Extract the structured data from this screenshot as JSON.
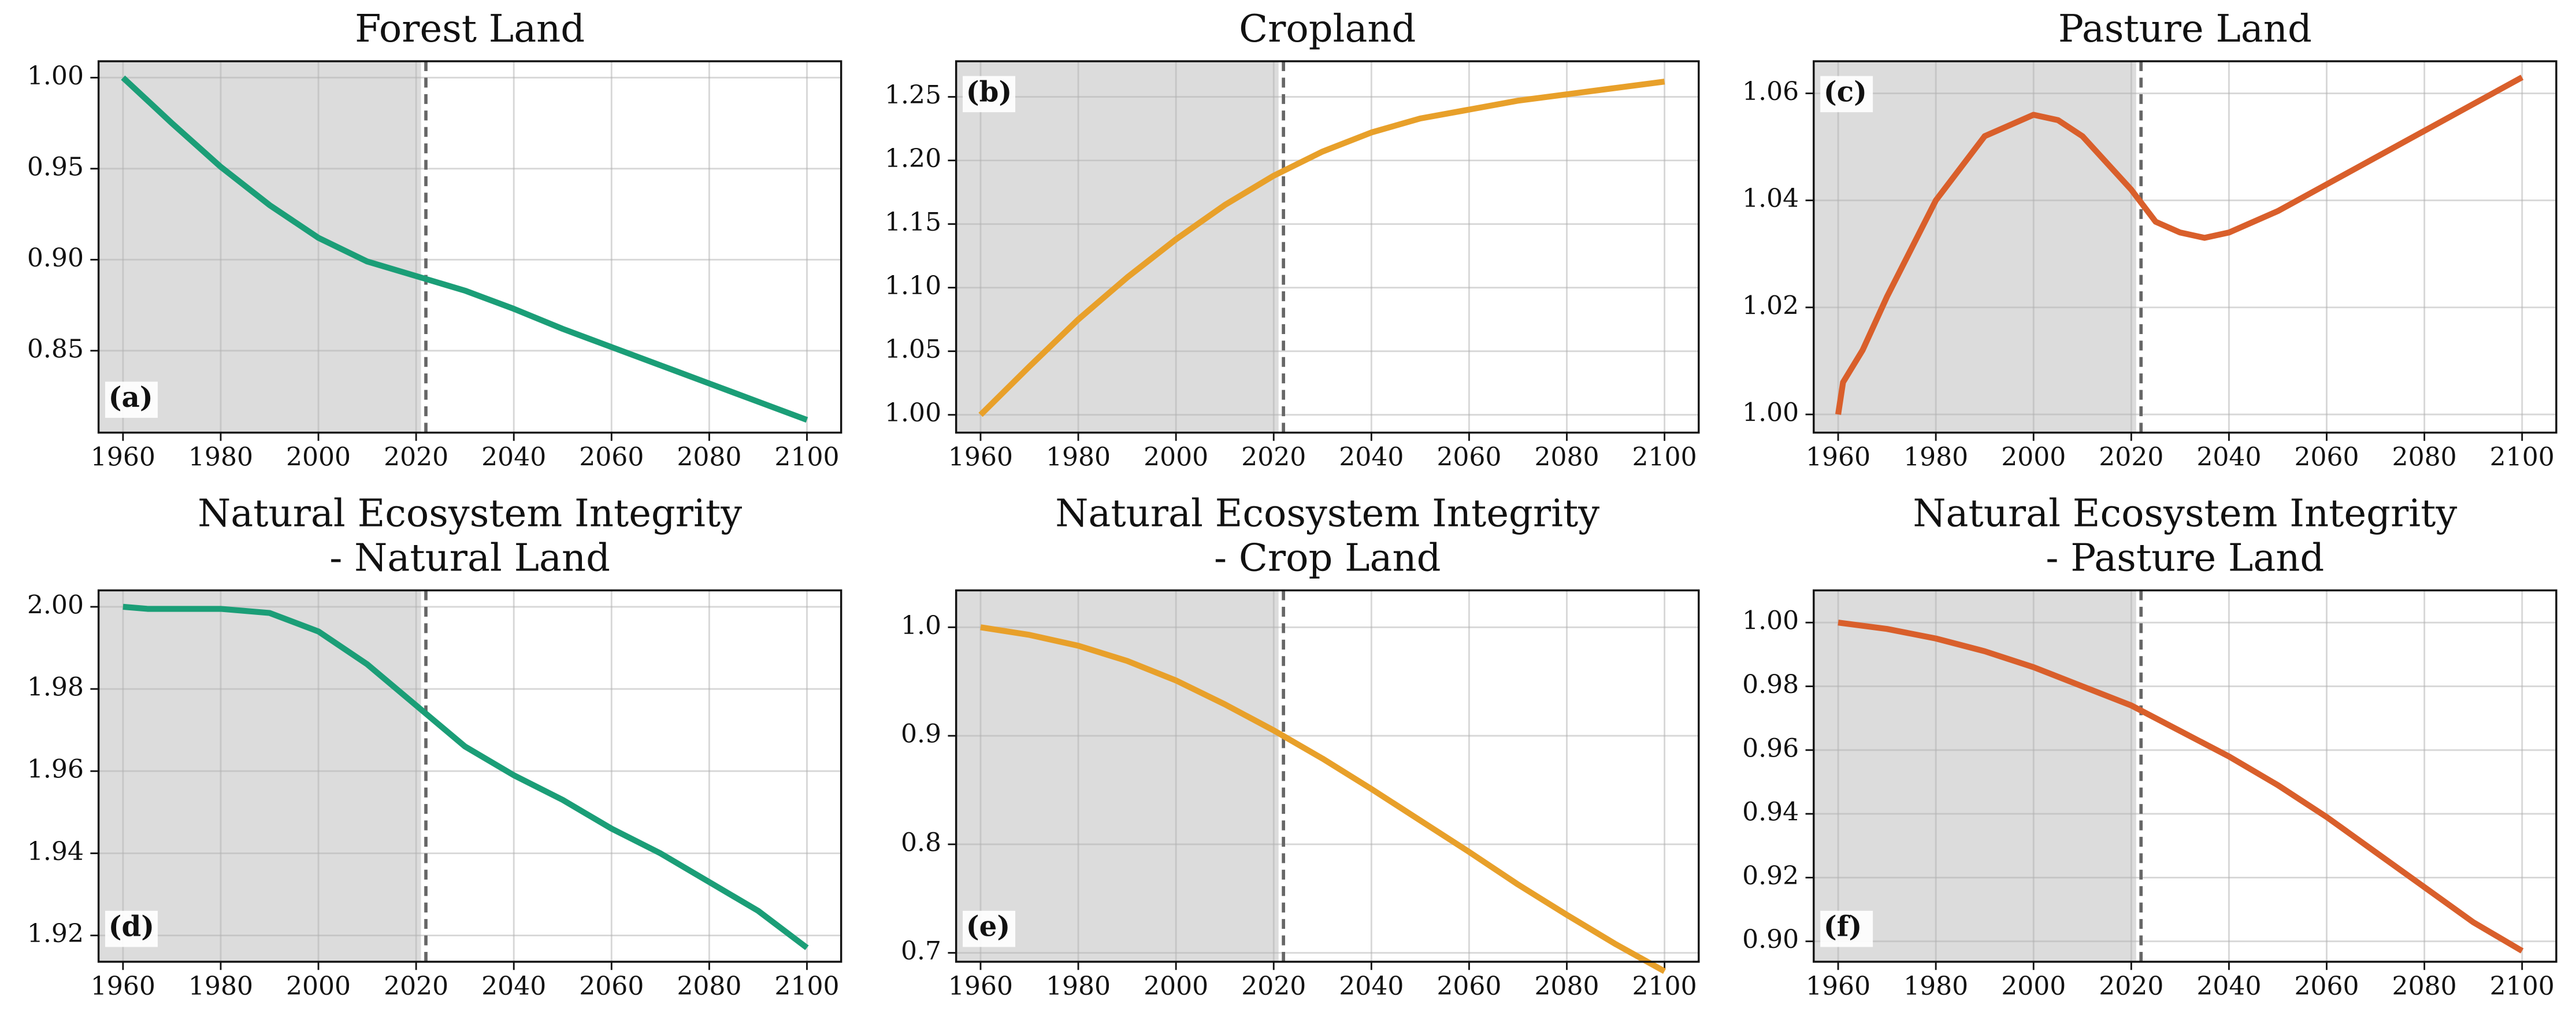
{
  "chart_data": [
    {
      "type": "line",
      "title": [
        "Forest Land"
      ],
      "panel_label": "(a)",
      "label_loc": "lower left",
      "x": [
        1960,
        1962,
        1970,
        1980,
        1990,
        2000,
        2010,
        2020,
        2030,
        2040,
        2050,
        2060,
        2070,
        2080,
        2090,
        2100
      ],
      "series": [
        {
          "color": "#1b9e77",
          "values": [
            1.0,
            0.995,
            0.975,
            0.951,
            0.93,
            0.912,
            0.899,
            0.891,
            0.883,
            0.873,
            0.862,
            0.852,
            0.842,
            0.832,
            0.822,
            0.812
          ]
        }
      ],
      "xlim": [
        1955,
        2107
      ],
      "xticks": [
        1960,
        1980,
        2000,
        2020,
        2040,
        2060,
        2080,
        2100
      ],
      "ylim": [
        0.805,
        1.009
      ],
      "yticks": [
        {
          "value": 1.0,
          "label": "1.00"
        },
        0.95,
        {
          "value": 0.9,
          "label": "0.90"
        },
        0.85
      ],
      "shade_until": 2021,
      "vline": 2022,
      "grid": true
    },
    {
      "type": "line",
      "title": [
        "Cropland"
      ],
      "panel_label": "(b)",
      "label_loc": "upper left",
      "x": [
        1960,
        1970,
        1980,
        1990,
        2000,
        2010,
        2020,
        2030,
        2040,
        2050,
        2060,
        2070,
        2080,
        2090,
        2100
      ],
      "series": [
        {
          "color": "#e8a02a",
          "values": [
            1.0,
            1.038,
            1.075,
            1.108,
            1.138,
            1.165,
            1.188,
            1.207,
            1.222,
            1.233,
            1.24,
            1.247,
            1.252,
            1.257,
            1.262
          ]
        }
      ],
      "xlim": [
        1955,
        2107
      ],
      "xticks": [
        1960,
        1980,
        2000,
        2020,
        2040,
        2060,
        2080,
        2100
      ],
      "ylim": [
        0.986,
        1.278
      ],
      "yticks": [
        {
          "value": 1.0,
          "label": "1.00"
        },
        1.05,
        {
          "value": 1.1,
          "label": "1.10"
        },
        1.15,
        {
          "value": 1.2,
          "label": "1.20"
        },
        1.25
      ],
      "shade_until": 2021,
      "vline": 2022,
      "grid": true
    },
    {
      "type": "line",
      "title": [
        "Pasture Land"
      ],
      "panel_label": "(c)",
      "label_loc": "upper left",
      "x": [
        1960,
        1961,
        1965,
        1970,
        1980,
        1990,
        2000,
        2005,
        2010,
        2020,
        2025,
        2030,
        2035,
        2040,
        2050,
        2060,
        2070,
        2080,
        2090,
        2100
      ],
      "series": [
        {
          "color": "#d95f2b",
          "values": [
            1.0,
            1.006,
            1.012,
            1.022,
            1.04,
            1.052,
            1.056,
            1.055,
            1.052,
            1.042,
            1.036,
            1.034,
            1.033,
            1.034,
            1.038,
            1.043,
            1.048,
            1.053,
            1.058,
            1.063
          ]
        }
      ],
      "xlim": [
        1955,
        2107
      ],
      "xticks": [
        1960,
        1980,
        2000,
        2020,
        2040,
        2060,
        2080,
        2100
      ],
      "ylim": [
        0.9966,
        1.066
      ],
      "yticks": [
        {
          "value": 1.0,
          "label": "1.00"
        },
        1.02,
        1.04,
        1.06
      ],
      "shade_until": 2021,
      "vline": 2022,
      "grid": true
    },
    {
      "type": "line",
      "title": [
        "Natural Ecosystem Integrity",
        "- Natural Land"
      ],
      "panel_label": "(d)",
      "label_loc": "lower left",
      "x": [
        1960,
        1965,
        1970,
        1980,
        1990,
        2000,
        2010,
        2020,
        2030,
        2040,
        2050,
        2060,
        2070,
        2080,
        2090,
        2100
      ],
      "series": [
        {
          "color": "#1b9e77",
          "values": [
            2.0,
            1.9995,
            1.9995,
            1.9995,
            1.9985,
            1.994,
            1.986,
            1.976,
            1.966,
            1.959,
            1.953,
            1.946,
            1.94,
            1.933,
            1.926,
            1.917
          ]
        }
      ],
      "xlim": [
        1955,
        2107
      ],
      "xticks": [
        1960,
        1980,
        2000,
        2020,
        2040,
        2060,
        2080,
        2100
      ],
      "ylim": [
        1.9136,
        2.004
      ],
      "yticks": [
        {
          "value": 1.92,
          "label": "1.92"
        },
        1.94,
        1.96,
        1.98,
        {
          "value": 2.0,
          "label": "2.00"
        }
      ],
      "shade_until": 2021,
      "vline": 2022,
      "grid": true
    },
    {
      "type": "line",
      "title": [
        "Natural Ecosystem Integrity",
        "- Crop Land"
      ],
      "panel_label": "(e)",
      "label_loc": "lower left",
      "x": [
        1960,
        1970,
        1980,
        1990,
        2000,
        2010,
        2020,
        2030,
        2040,
        2050,
        2060,
        2070,
        2080,
        2090,
        2100
      ],
      "series": [
        {
          "color": "#e8a02a",
          "values": [
            1.0,
            0.993,
            0.983,
            0.969,
            0.951,
            0.929,
            0.905,
            0.879,
            0.851,
            0.822,
            0.793,
            0.763,
            0.735,
            0.708,
            0.683
          ]
        }
      ],
      "xlim": [
        1955,
        2107
      ],
      "xticks": [
        1960,
        1980,
        2000,
        2020,
        2040,
        2060,
        2080,
        2100
      ],
      "ylim": [
        0.6918,
        1.034
      ],
      "yticks": [
        0.7,
        0.8,
        0.9,
        {
          "value": 1.0,
          "label": "1.0"
        }
      ],
      "shade_until": 2021,
      "vline": 2022,
      "grid": true
    },
    {
      "type": "line",
      "title": [
        "Natural Ecosystem Integrity",
        "- Pasture Land"
      ],
      "panel_label": "(f)",
      "label_loc": "lower left",
      "x": [
        1960,
        1970,
        1980,
        1990,
        2000,
        2010,
        2020,
        2030,
        2040,
        2050,
        2060,
        2070,
        2080,
        2090,
        2100
      ],
      "series": [
        {
          "color": "#d95f2b",
          "values": [
            1.0,
            0.998,
            0.995,
            0.991,
            0.986,
            0.98,
            0.974,
            0.966,
            0.958,
            0.949,
            0.939,
            0.928,
            0.917,
            0.906,
            0.897
          ]
        }
      ],
      "xlim": [
        1955,
        2107
      ],
      "xticks": [
        1960,
        1980,
        2000,
        2020,
        2040,
        2060,
        2080,
        2100
      ],
      "ylim": [
        0.8936,
        1.0101
      ],
      "yticks": [
        {
          "value": 0.9,
          "label": "0.90"
        },
        0.92,
        0.94,
        0.96,
        0.98,
        {
          "value": 1.0,
          "label": "1.00"
        }
      ],
      "shade_until": 2021,
      "vline": 2022,
      "grid": true
    }
  ]
}
